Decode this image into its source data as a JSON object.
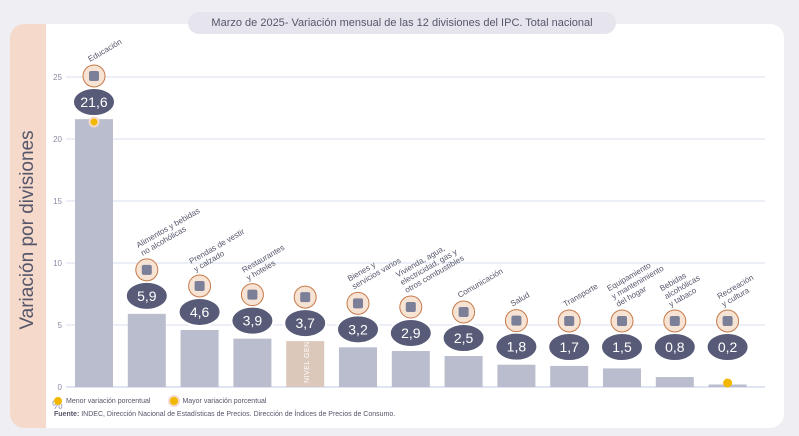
{
  "header": {
    "title_date": "Marzo de 2025",
    "title_rest": " - Variación mensual de las 12 divisiones del IPC. Total nacional"
  },
  "side_label": "Variación por divisiones",
  "unit_label": "%",
  "legend": {
    "min": "Menor variación porcentual",
    "max": "Mayor variación porcentual"
  },
  "source": {
    "label": "Fuente:",
    "text": " INDEC, Dirección Nacional de Estadísticas de Precios. Dirección de Índices de Precios de Consumo."
  },
  "colors": {
    "bar": "#b9bdcd",
    "general_bar": "#dcc8bb",
    "badge": "#575b77",
    "grid": "#ccd4ea",
    "highlight": "#f2b800"
  },
  "chart_data": {
    "type": "bar",
    "title": "Marzo de 2025 - Variación mensual de las 12 divisiones del IPC. Total nacional",
    "ylabel": "Variación por divisiones",
    "ylim": [
      0,
      25
    ],
    "yticks": [
      0,
      5,
      10,
      15,
      20,
      25
    ],
    "grid": true,
    "categories": [
      "Educación",
      "Alimentos y bebidas no alcohólicas",
      "Prendas de vestir y calzado",
      "Restaurantes y hoteles",
      "NIVEL GENERAL",
      "Bienes y servicios varios",
      "Vivienda, agua, electricidad, gas y otros combustibles",
      "Comunicación",
      "Salud",
      "Transporte",
      "Equipamiento y mantenimiento del hogar",
      "Bebidas alcohólicas y tabaco",
      "Recreación y cultura"
    ],
    "values": [
      21.6,
      5.9,
      4.6,
      3.9,
      3.7,
      3.2,
      2.9,
      2.5,
      1.8,
      1.7,
      1.5,
      0.8,
      0.2
    ],
    "value_labels": [
      "21,6",
      "5,9",
      "4,6",
      "3,9",
      "3,7",
      "3,2",
      "2,9",
      "2,5",
      "1,8",
      "1,7",
      "1,5",
      "0,8",
      "0,2"
    ],
    "category_lines": [
      [
        "Educación"
      ],
      [
        "Alimentos y bebidas",
        "no alcohólicas"
      ],
      [
        "Prendas de vestir",
        "y calzado"
      ],
      [
        "Restaurantes",
        "y hoteles"
      ],
      [],
      [
        "Bienes y",
        "servicios varios"
      ],
      [
        "Vivienda, agua,",
        "electricidad, gas y",
        "otros combustibles"
      ],
      [
        "Comunicación"
      ],
      [
        "Salud"
      ],
      [
        "Transporte"
      ],
      [
        "Equipamiento",
        "y mantenimiento",
        "del hogar"
      ],
      [
        "Bebidas",
        "alcohólicas",
        "y tabaco"
      ],
      [
        "Recreación",
        "y cultura"
      ]
    ],
    "general_index": 4,
    "general_label_lines": [
      "NIVEL",
      "GENERAL"
    ],
    "max_index": 0,
    "min_index": 12,
    "icons": [
      "books-icon",
      "food-basket-icon",
      "clothing-icon",
      "dining-plate-icon",
      "shopping-basket-icon",
      "comb-brush-icon",
      "lightbulb-icon",
      "smartphone-icon",
      "medical-cross-icon",
      "bus-card-icon",
      "appliance-icon",
      "bottle-glass-icon",
      "beach-umbrella-icon"
    ]
  }
}
